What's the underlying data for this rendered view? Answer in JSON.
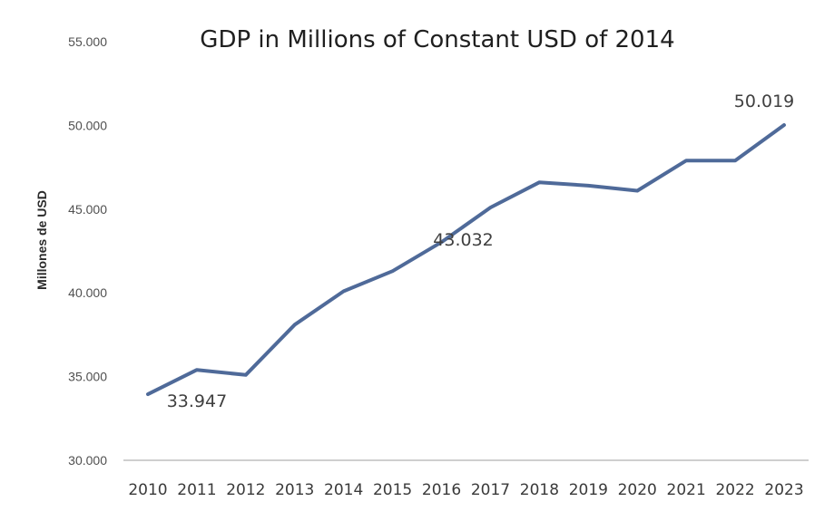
{
  "chart_data": {
    "type": "line",
    "title": "GDP in Millions of Constant USD of 2014",
    "xlabel": "",
    "ylabel": "Millones de USD",
    "ylim": [
      30000,
      55000
    ],
    "yticks": [
      30000,
      35000,
      40000,
      45000,
      50000,
      55000
    ],
    "ytick_labels": [
      "30.000",
      "35.000",
      "40.000",
      "45.000",
      "50.000",
      "55.000"
    ],
    "categories": [
      "2010",
      "2011",
      "2012",
      "2013",
      "2014",
      "2015",
      "2016",
      "2017",
      "2018",
      "2019",
      "2020",
      "2021",
      "2022",
      "2023"
    ],
    "series": [
      {
        "values": [
          33947,
          35400,
          35100,
          38100,
          40100,
          41300,
          43032,
          45100,
          46600,
          46400,
          46100,
          47900,
          47900,
          50019
        ]
      }
    ],
    "data_labels": [
      {
        "index": 0,
        "text": "33.947"
      },
      {
        "index": 6,
        "text": "43.032"
      },
      {
        "index": 13,
        "text": "50.019"
      }
    ],
    "grid": false,
    "legend": "none",
    "colors": {
      "line": "#4f6a99",
      "axis": "#bfbfbf"
    }
  }
}
